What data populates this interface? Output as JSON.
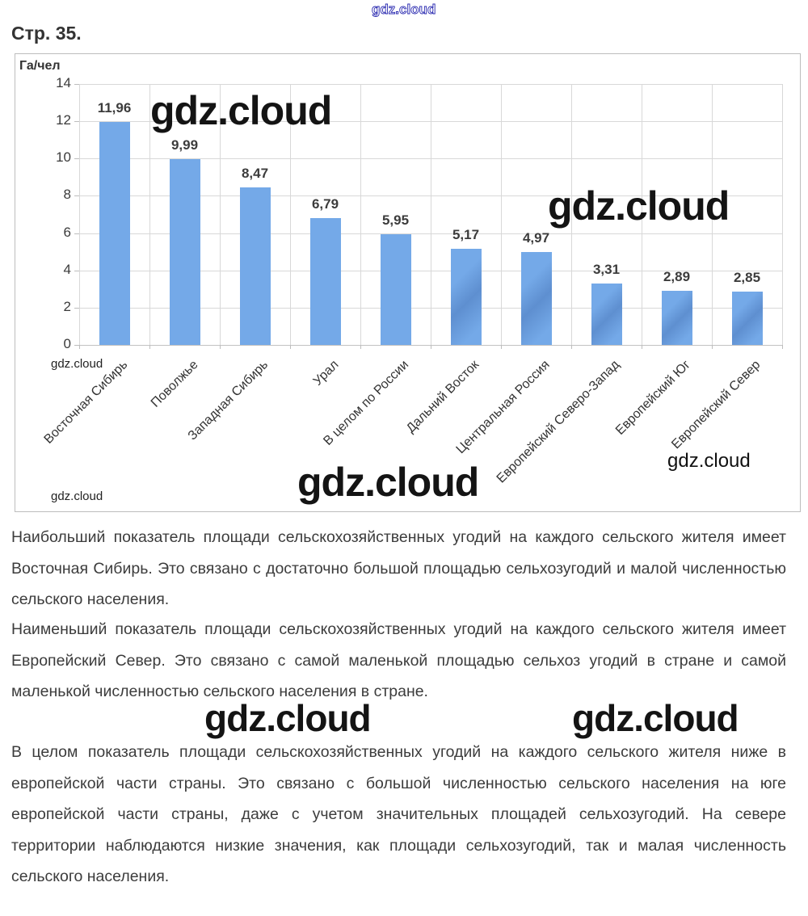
{
  "page": {
    "heading": "Стр. 35."
  },
  "watermark": {
    "text": "gdz.cloud",
    "blue": "#2a2ab0"
  },
  "chart_data": {
    "type": "bar",
    "title": "",
    "xlabel": "",
    "ylabel": "Га/чел",
    "ylim": [
      0,
      14
    ],
    "yticks": [
      0,
      2,
      4,
      6,
      8,
      10,
      12,
      14
    ],
    "grid": true,
    "legend": false,
    "bar_color": "#74A9E8",
    "x_label_rotation": -45,
    "categories": [
      "Восточная Сибирь",
      "Поволжье",
      "Западная Сибирь",
      "Урал",
      "В целом по России",
      "Дальний Восток",
      "Центральная Россия",
      "Европейский Северо-Запад",
      "Европейский Юг",
      "Европейский Север"
    ],
    "values": [
      11.96,
      9.99,
      8.47,
      6.79,
      5.95,
      5.17,
      4.97,
      3.31,
      2.89,
      2.85
    ],
    "value_labels": [
      "11,96",
      "9,99",
      "8,47",
      "6,79",
      "5,95",
      "5,17",
      "4,97",
      "3,31",
      "2,89",
      "2,85"
    ]
  },
  "paragraphs": [
    "Наибольший показатель площади сельскохозяйственных угодий на каждого сельского жителя имеет Восточная Сибирь. Это связано с достаточно большой площадью сельхозугодий и малой численностью сельского населения.",
    "Наименьший показатель площади сельскохозяйственных угодий на каждого сельского жителя имеет Европейский Север. Это связано с самой маленькой площадью сельхоз угодий в стране и самой маленькой численностью сельского населения в стране.",
    "В целом показатель площади сельскохозяйственных угодий на каждого сельского жителя ниже в европейской части страны. Это связано с большой численностью сельского населения на юге европейской части страны, даже с учетом значительных площадей сельхозугодий. На севере территории наблюдаются низкие значения, как площади сельхозугодий, так и малая численность сельского населения."
  ]
}
